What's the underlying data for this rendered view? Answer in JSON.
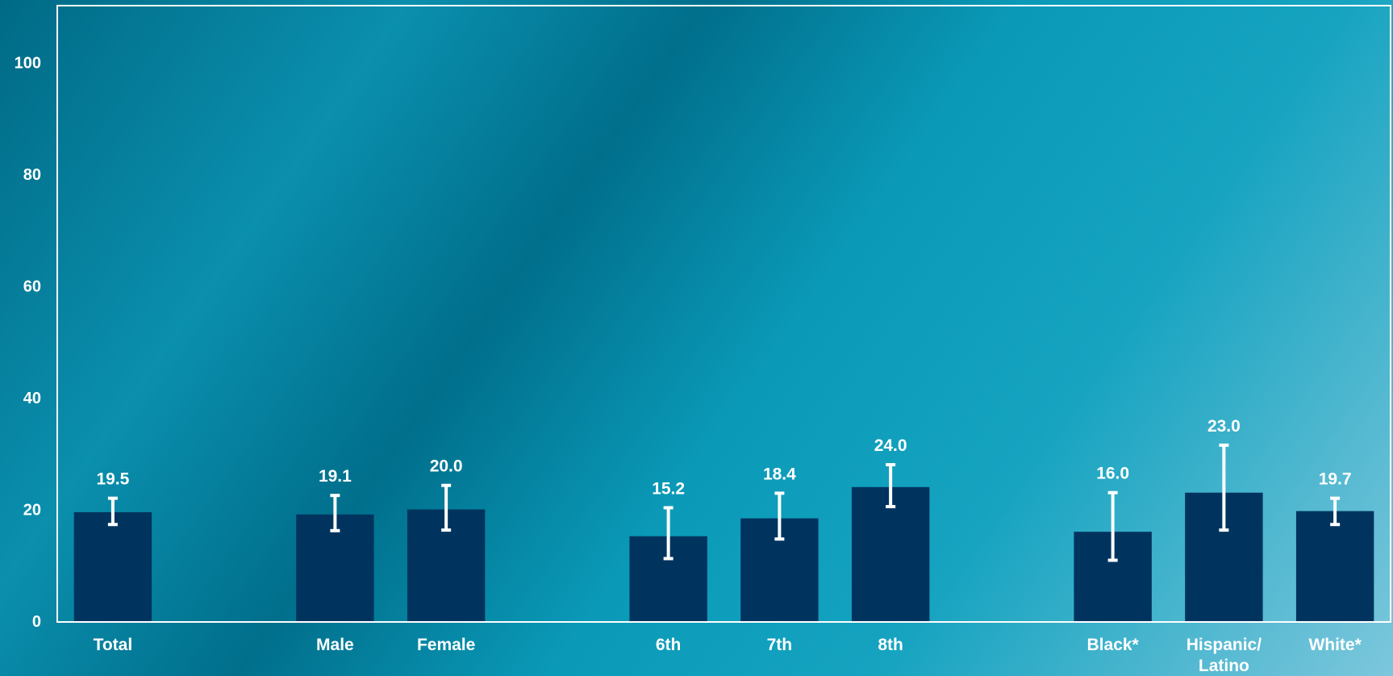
{
  "chart_data": {
    "type": "bar",
    "categories": [
      "Total",
      "Male",
      "Female",
      "6th",
      "7th",
      "8th",
      "Black*",
      "Hispanic/ Latino",
      "White*"
    ],
    "category_lines": [
      [
        "Total"
      ],
      [
        "Male"
      ],
      [
        "Female"
      ],
      [
        "6th"
      ],
      [
        "7th"
      ],
      [
        "8th"
      ],
      [
        "Black*"
      ],
      [
        "Hispanic/",
        "Latino"
      ],
      [
        "White*"
      ]
    ],
    "groups": [
      [
        0
      ],
      [
        1,
        2
      ],
      [
        3,
        4,
        5
      ],
      [
        6,
        7,
        8
      ]
    ],
    "values": [
      19.5,
      19.1,
      20.0,
      15.2,
      18.4,
      24.0,
      16.0,
      23.0,
      19.7
    ],
    "value_labels": [
      "19.5",
      "19.1",
      "20.0",
      "15.2",
      "18.4",
      "24.0",
      "16.0",
      "23.0",
      "19.7"
    ],
    "ci_lower": [
      17.3,
      16.2,
      16.3,
      11.2,
      14.7,
      20.5,
      10.9,
      16.3,
      17.3
    ],
    "ci_upper": [
      22.0,
      22.5,
      24.3,
      20.3,
      22.9,
      28.0,
      23.0,
      31.5,
      22.0
    ],
    "ylim": [
      0,
      100
    ],
    "yticks": [
      0,
      20,
      40,
      60,
      80,
      100
    ],
    "ytick_labels": [
      "0",
      "20",
      "40",
      "60",
      "80",
      "100"
    ],
    "title": "",
    "xlabel": "",
    "ylabel": "",
    "legend": "none",
    "grid": false,
    "colors": {
      "bar": "#00345f",
      "error_bar": "#ffffff",
      "axis": "#ffffff",
      "text": "#ffffff"
    }
  }
}
